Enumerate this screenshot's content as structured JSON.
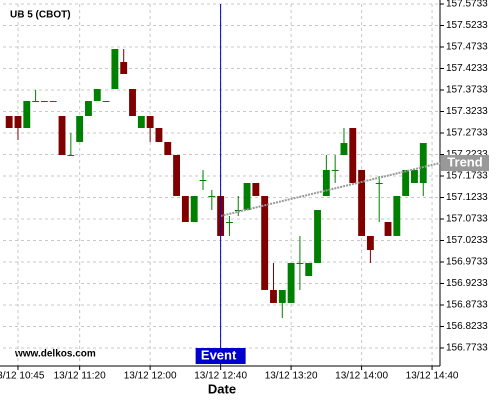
{
  "chart_data": {
    "type": "candlestick",
    "title": "UB 5 (CBOT)",
    "xlabel": "Date",
    "watermark": "www.delkos.com",
    "categories": [
      null,
      null,
      null,
      null,
      null,
      null,
      null,
      null,
      null,
      null,
      null,
      null,
      null,
      null,
      null,
      null,
      null,
      null,
      null,
      null,
      null,
      null,
      null,
      null,
      null,
      null,
      null,
      null,
      null,
      null,
      null,
      null,
      null,
      null,
      null,
      null,
      null,
      null,
      null,
      null,
      null,
      null,
      null,
      null,
      null,
      null,
      null,
      null
    ],
    "open": [
      157.3128,
      157.3128,
      157.2849,
      157.3477,
      157.3477,
      157.3477,
      157.3128,
      157.2221,
      157.2524,
      157.3128,
      157.3477,
      157.3477,
      157.3756,
      157.4384,
      157.3756,
      157.2849,
      157.3128,
      157.2849,
      157.2524,
      157.2221,
      157.1268,
      157.0663,
      157.164,
      157.1268,
      157.1268,
      157.0663,
      157.0942,
      157.0942,
      157.157,
      157.1268,
      156.9082,
      156.878,
      156.878,
      156.971,
      156.9407,
      156.971,
      157.1268,
      157.1873,
      157.2221,
      157.2849,
      157.1873,
      157.0338,
      157.157,
      157.0663,
      157.0338,
      157.1268,
      157.157,
      157.157
    ],
    "high": [
      157.3128,
      157.3128,
      157.3477,
      157.3733,
      157.3477,
      157.3477,
      157.3128,
      157.2733,
      157.3128,
      157.3477,
      157.3756,
      157.3477,
      157.4686,
      157.4686,
      157.3756,
      157.3128,
      157.3128,
      157.2849,
      157.2524,
      157.2221,
      157.1268,
      157.1268,
      157.1873,
      157.1407,
      157.1268,
      157.0803,
      157.1268,
      157.157,
      157.157,
      157.1268,
      156.971,
      156.9082,
      156.971,
      157.0338,
      156.971,
      157.0942,
      157.2221,
      157.2221,
      157.2849,
      157.2849,
      157.1873,
      157.0338,
      157.1733,
      157.0663,
      157.1268,
      157.1873,
      157.1873,
      157.25
    ],
    "low": [
      157.2849,
      157.257,
      157.2849,
      157.3477,
      157.3477,
      157.3477,
      157.2221,
      157.2221,
      157.2524,
      157.3128,
      157.3477,
      157.3477,
      157.3756,
      157.4105,
      157.3128,
      157.2849,
      157.2524,
      157.2524,
      157.2221,
      157.1268,
      157.0663,
      157.0663,
      157.1407,
      157.0942,
      157.0338,
      157.0338,
      157.0803,
      157.0942,
      157.1268,
      156.9082,
      156.878,
      156.8431,
      156.878,
      156.9082,
      156.9407,
      156.971,
      157.1268,
      157.157,
      157.2221,
      157.157,
      157.0338,
      156.971,
      157.0663,
      157.0338,
      157.0338,
      157.1268,
      157.157,
      157.1268
    ],
    "close": [
      157.2849,
      157.2849,
      157.3477,
      157.3477,
      157.3477,
      157.3477,
      157.2221,
      157.2221,
      157.3128,
      157.3477,
      157.3756,
      157.3477,
      157.4686,
      157.4105,
      157.3128,
      157.3128,
      157.2849,
      157.2524,
      157.2221,
      157.1268,
      157.0663,
      157.1268,
      157.164,
      157.1268,
      157.0338,
      157.0663,
      157.0942,
      157.157,
      157.1268,
      156.9082,
      156.878,
      156.9082,
      156.971,
      156.971,
      156.971,
      157.0942,
      157.1873,
      157.1873,
      157.25,
      157.157,
      157.0338,
      157.0012,
      157.157,
      157.0338,
      157.1268,
      157.1873,
      157.1873,
      157.25
    ],
    "up_color": "#008000",
    "down_color": "#800000",
    "xlim": [
      -0.7,
      48.9
    ],
    "xticks": [
      {
        "value": 1,
        "label": "13/12 10:45"
      },
      {
        "value": 8,
        "label": "13/12 11:20"
      },
      {
        "value": 16,
        "label": "13/12 12:00"
      },
      {
        "value": 24,
        "label": "13/12 12:40"
      },
      {
        "value": 32,
        "label": "13/12 13:20"
      },
      {
        "value": 40,
        "label": "13/12 14:00"
      },
      {
        "value": 48,
        "label": "13/12 14:40"
      }
    ],
    "ylim": [
      156.7314,
      157.5733
    ],
    "yticks": [
      157.5733,
      157.5233,
      157.4733,
      157.4233,
      157.3733,
      157.3233,
      157.2733,
      157.2233,
      157.1733,
      157.1233,
      157.0733,
      157.0233,
      156.9733,
      156.9233,
      156.8733,
      156.8233,
      156.7733
    ],
    "grid": true,
    "event": {
      "label": "Event",
      "x": 24,
      "color": "#0000cc"
    },
    "trend": {
      "name": "Trend",
      "x": [
        24,
        48.9
      ],
      "values": [
        157.0803,
        157.2035
      ],
      "color": "#999999"
    }
  }
}
